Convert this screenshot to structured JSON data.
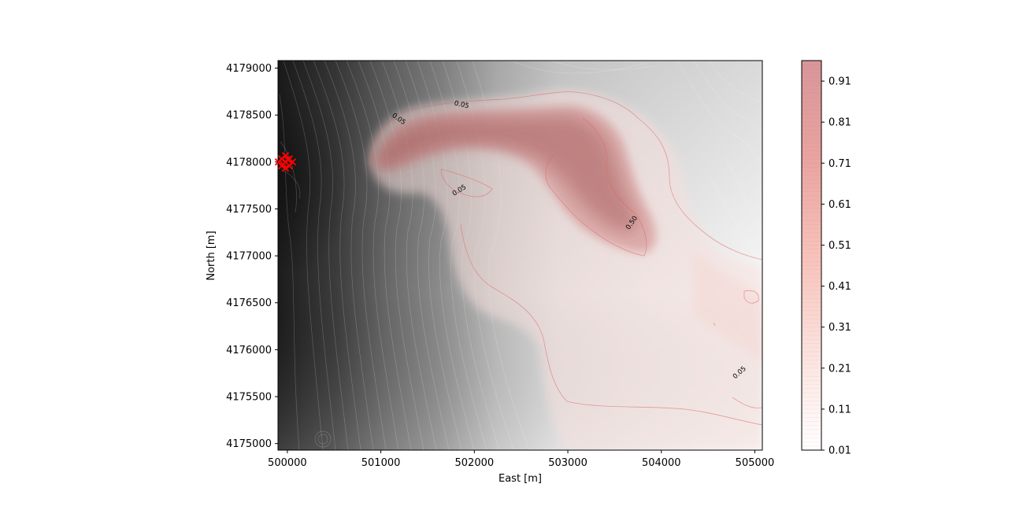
{
  "chart_data": {
    "type": "heatmap",
    "title": "",
    "xlabel": "East [m]",
    "ylabel": "North [m]",
    "xlim": [
      499900,
      505080
    ],
    "ylim": [
      4174930,
      4179080
    ],
    "x_ticks": [
      500000,
      501000,
      502000,
      503000,
      504000,
      505000
    ],
    "x_tick_labels": [
      "500000",
      "501000",
      "502000",
      "503000",
      "504000",
      "505000"
    ],
    "y_ticks": [
      4175000,
      4175500,
      4176000,
      4176500,
      4177000,
      4177500,
      4178000,
      4178500,
      4179000
    ],
    "y_tick_labels": [
      "4175000",
      "4175500",
      "4176000",
      "4176500",
      "4177000",
      "4177500",
      "4178000",
      "4178500",
      "4179000"
    ],
    "background": "grayscale topography with white contour lines (dark to the west, light to the east)",
    "grid": false,
    "colorbar": {
      "range": [
        0.01,
        0.96
      ],
      "ticks": [
        0.01,
        0.11,
        0.21,
        0.31,
        0.41,
        0.51,
        0.61,
        0.71,
        0.81,
        0.91
      ],
      "tick_labels": [
        "0.01",
        "0.11",
        "0.21",
        "0.31",
        "0.41",
        "0.51",
        "0.61",
        "0.71",
        "0.81",
        "0.91"
      ],
      "colormap": "white to red (semi-transparent)"
    },
    "contour_labels": [
      {
        "text": "0.05",
        "x": 501180,
        "y": 4178440,
        "angle": -35
      },
      {
        "text": "0.05",
        "x": 501860,
        "y": 4178590,
        "angle": -12
      },
      {
        "text": "0.05",
        "x": 501850,
        "y": 4177680,
        "angle": 32
      },
      {
        "text": "0.50",
        "x": 503700,
        "y": 4177340,
        "angle": 55
      },
      {
        "text": "0.05",
        "x": 504850,
        "y": 4175740,
        "angle": 42
      }
    ],
    "vent": {
      "x": 499980,
      "y": 4178000,
      "color": "#ff0000"
    },
    "colors": {
      "hazard": "#d43a3a",
      "vent": "#ff0000",
      "terrain_dark": "#222222",
      "terrain_light": "#f2f2f2"
    }
  }
}
